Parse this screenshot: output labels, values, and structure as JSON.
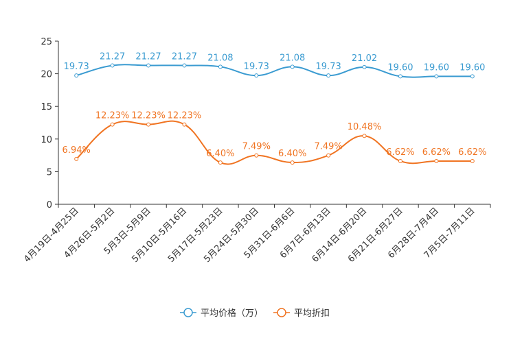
{
  "chart_data": {
    "type": "line",
    "title": "",
    "xlabel": "",
    "ylabel": "",
    "ylim": [
      0,
      25
    ],
    "yticks": [
      0,
      5,
      10,
      15,
      20,
      25
    ],
    "grid": false,
    "legend_position": "bottom",
    "categories": [
      "4月19日-4月25日",
      "4月26日-5月2日",
      "5月3日-5月9日",
      "5月10日-5月16日",
      "5月17日-5月23日",
      "5月24日-5月30日",
      "5月31日-6月6日",
      "6月7日-6月13日",
      "6月14日-6月20日",
      "6月21日-6月27日",
      "6月28日-7月4日",
      "7月5日-7月11日"
    ],
    "series": [
      {
        "name": "平均价格（万）",
        "color": "#3a9bd1",
        "values": [
          19.73,
          21.27,
          21.27,
          21.27,
          21.08,
          19.73,
          21.08,
          19.73,
          21.02,
          19.6,
          19.6,
          19.6
        ],
        "labels": [
          "19.73",
          "21.27",
          "21.27",
          "21.27",
          "21.08",
          "19.73",
          "21.08",
          "19.73",
          "21.02",
          "19.60",
          "19.60",
          "19.60"
        ]
      },
      {
        "name": "平均折扣",
        "color": "#f07422",
        "values": [
          6.94,
          12.23,
          12.23,
          12.23,
          6.4,
          7.49,
          6.4,
          7.49,
          10.48,
          6.62,
          6.62,
          6.62
        ],
        "labels": [
          "6.94%",
          "12.23%",
          "12.23%",
          "12.23%",
          "6.40%",
          "7.49%",
          "6.40%",
          "7.49%",
          "10.48%",
          "6.62%",
          "6.62%",
          "6.62%"
        ]
      }
    ]
  }
}
